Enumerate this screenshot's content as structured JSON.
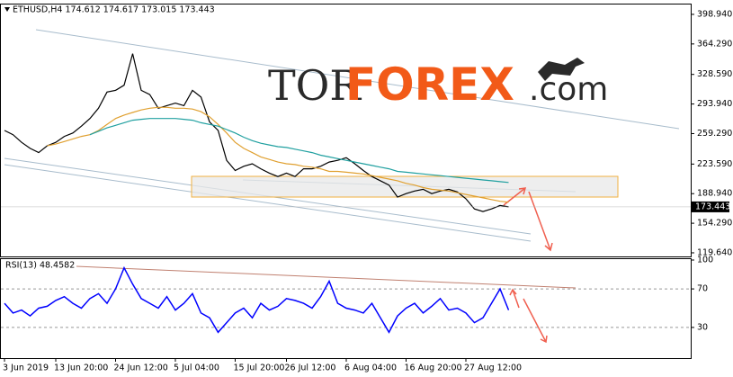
{
  "logo": {
    "tor": "TOR",
    "forex": "FOREX",
    "com": ".com"
  },
  "chart_data": [
    {
      "type": "line",
      "title": "ETHUSD,H4  174.612 174.617 173.015 173.443",
      "ylim": [
        115.4,
        410.5
      ],
      "yticks": [
        {
          "value": 398.94,
          "label": "398.940"
        },
        {
          "value": 364.29,
          "label": "364.290"
        },
        {
          "value": 328.59,
          "label": "328.590"
        },
        {
          "value": 293.94,
          "label": "293.940"
        },
        {
          "value": 259.29,
          "label": "259.290"
        },
        {
          "value": 223.59,
          "label": "223.590"
        },
        {
          "value": 188.94,
          "label": "188.940"
        },
        {
          "value": 154.29,
          "label": "154.290"
        },
        {
          "value": 119.64,
          "label": "119.640"
        }
      ],
      "last_price": {
        "value": 173.443,
        "label": "173.443"
      },
      "series": [
        {
          "color": "#000000",
          "values": [
            263,
            258,
            249,
            242,
            237,
            245,
            249,
            256,
            260,
            268,
            277,
            289,
            308,
            310,
            316,
            353,
            310,
            305,
            289,
            292,
            295,
            292,
            310,
            302,
            273,
            263,
            228,
            216,
            221,
            224,
            218,
            213,
            209,
            213,
            209,
            218,
            218,
            221,
            226,
            228,
            231,
            224,
            216,
            209,
            204,
            199,
            185,
            189,
            192,
            194,
            189,
            192,
            194,
            191,
            183,
            171,
            168,
            171,
            175,
            173.443
          ]
        },
        {
          "color": "#e0a030",
          "values": [
            null,
            null,
            null,
            null,
            null,
            245,
            247,
            250,
            253,
            256,
            258,
            263,
            270,
            277,
            281,
            284,
            287,
            289,
            290,
            290,
            289,
            289,
            288,
            285,
            279,
            270,
            260,
            249,
            242,
            237,
            232,
            229,
            226,
            224,
            223,
            221,
            220,
            218,
            215,
            215,
            214,
            213,
            212,
            210,
            208,
            206,
            204,
            201,
            199,
            196,
            194,
            193,
            192,
            190,
            188,
            186,
            184,
            182,
            180,
            179
          ]
        },
        {
          "color": "#20a0a0",
          "values": [
            null,
            null,
            null,
            null,
            null,
            null,
            null,
            null,
            null,
            null,
            258,
            262,
            266,
            269,
            272,
            275,
            276,
            277,
            277,
            277,
            277,
            276,
            275,
            272,
            270,
            268,
            264,
            260,
            255,
            251,
            248,
            246,
            244,
            243,
            241,
            239,
            237,
            234,
            232,
            230,
            228,
            226,
            224,
            222,
            220,
            218,
            215,
            214,
            213,
            212,
            211,
            210,
            209,
            208,
            207,
            206,
            205,
            204,
            203,
            202
          ]
        }
      ]
    },
    {
      "type": "line",
      "title": "RSI(13) 48.4582",
      "ylim": [
        0,
        100
      ],
      "yticks": [
        100,
        70,
        30
      ],
      "grid": true,
      "xticks": [
        {
          "value": 0,
          "label": "3 Jun 2019"
        },
        {
          "value": 6,
          "label": "13 Jun 20:00"
        },
        {
          "value": 13,
          "label": "24 Jun 12:00"
        },
        {
          "value": 20,
          "label": "5 Jul 04:00"
        },
        {
          "value": 27,
          "label": "15 Jul 20:00"
        },
        {
          "value": 33,
          "label": "26 Jul 12:00"
        },
        {
          "value": 40,
          "label": "6 Aug 04:00"
        },
        {
          "value": 47,
          "label": "16 Aug 20:00"
        },
        {
          "value": 54,
          "label": "27 Aug 12:00"
        }
      ],
      "series": [
        {
          "color": "#0000ff",
          "values": [
            55,
            45,
            48,
            42,
            50,
            52,
            58,
            62,
            55,
            50,
            60,
            65,
            55,
            70,
            92,
            75,
            60,
            55,
            50,
            62,
            48,
            55,
            65,
            45,
            40,
            25,
            35,
            45,
            50,
            40,
            55,
            48,
            52,
            60,
            58,
            55,
            50,
            62,
            78,
            55,
            50,
            48,
            45,
            55,
            40,
            25,
            42,
            50,
            55,
            45,
            52,
            60,
            48,
            50,
            45,
            35,
            40,
            55,
            70,
            48
          ]
        }
      ]
    }
  ]
}
